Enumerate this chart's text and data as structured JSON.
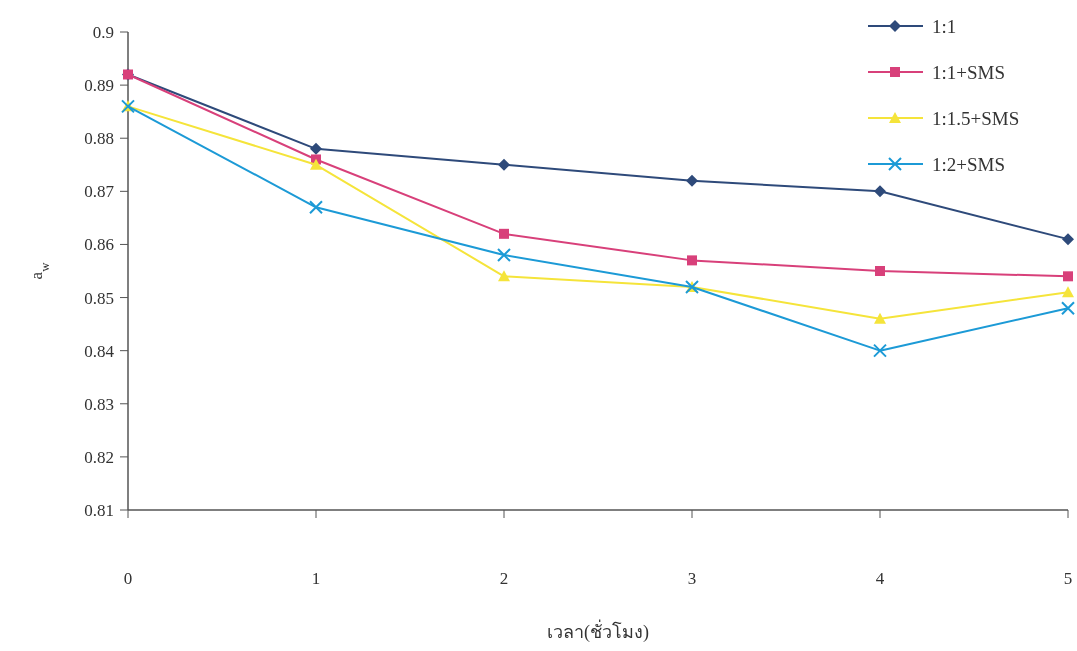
{
  "chart_data": {
    "type": "line",
    "xlabel": "เวลา(ชั่วโมง)",
    "ylabel": "a$_{w}$",
    "x": [
      0,
      1,
      2,
      3,
      4,
      5
    ],
    "xlim": [
      0,
      5
    ],
    "xticks": [
      0,
      1,
      2,
      3,
      4,
      5
    ],
    "ylim": [
      0.81,
      0.9
    ],
    "yticks": [
      0.81,
      0.82,
      0.83,
      0.84,
      0.85,
      0.86,
      0.87,
      0.88,
      0.89,
      {
        "value": 0.9,
        "label": "0.9"
      }
    ],
    "grid": false,
    "legend": "top right",
    "series": [
      {
        "name": "1:1",
        "color": "#2e4a7a",
        "marker": "diamond",
        "values": [
          0.892,
          0.878,
          0.875,
          0.872,
          0.87,
          0.861
        ]
      },
      {
        "name": "1:1+SMS",
        "color": "#d8407a",
        "marker": "square",
        "values": [
          0.892,
          0.876,
          0.862,
          0.857,
          0.855,
          0.854
        ]
      },
      {
        "name": "1:1.5+SMS",
        "color": "#f5e43a",
        "marker": "triangle",
        "values": [
          0.886,
          0.875,
          0.854,
          0.852,
          0.846,
          0.851
        ]
      },
      {
        "name": "1:2+SMS",
        "color": "#1c9ad6",
        "marker": "cross",
        "values": [
          0.886,
          0.867,
          0.858,
          0.852,
          0.84,
          0.848
        ]
      }
    ]
  }
}
